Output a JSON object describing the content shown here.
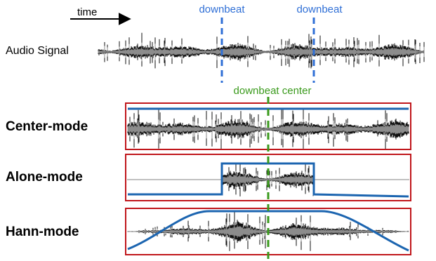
{
  "diagram": {
    "time_label": "time",
    "downbeat_label": "downbeat",
    "downbeat_center_label": "downbeat center",
    "audio_signal_label": "Audio Signal",
    "modes": [
      {
        "key": "center",
        "label": "Center-mode"
      },
      {
        "key": "alone",
        "label": "Alone-mode"
      },
      {
        "key": "hann",
        "label": "Hann-mode"
      }
    ]
  },
  "colors": {
    "downbeat": "#2f6fd6",
    "center": "#3a9a1c",
    "box": "#c0161b",
    "envelope": "#1c65b0",
    "wave_dark": "#111111",
    "wave_light": "#9a9a9a"
  }
}
